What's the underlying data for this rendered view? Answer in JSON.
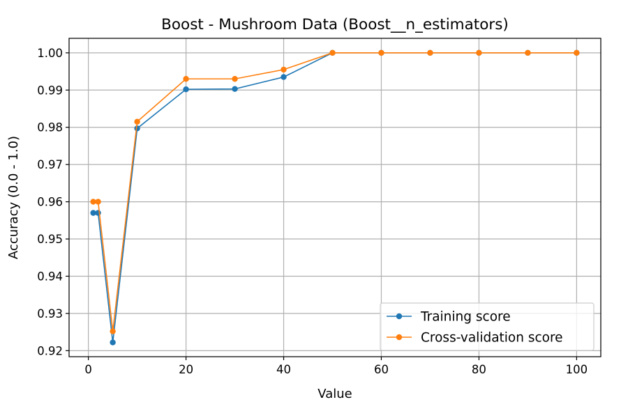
{
  "chart_data": {
    "type": "line",
    "title": "Boost - Mushroom Data (Boost__n_estimators)",
    "xlabel": "Value",
    "ylabel": "Accuracy (0.0 - 1.0)",
    "xlim": [
      -3.95,
      104.95
    ],
    "ylim": [
      0.91838,
      1.0039
    ],
    "xticks": [
      0,
      20,
      40,
      60,
      80,
      100
    ],
    "yticks": [
      0.92,
      0.93,
      0.94,
      0.95,
      0.96,
      0.97,
      0.98,
      0.99,
      1.0
    ],
    "xtick_labels": [
      "0",
      "20",
      "40",
      "60",
      "80",
      "100"
    ],
    "ytick_labels": [
      "0.92",
      "0.93",
      "0.94",
      "0.95",
      "0.96",
      "0.97",
      "0.98",
      "0.99",
      "1.00"
    ],
    "grid": true,
    "legend_position": "lower-right",
    "x": [
      1,
      2,
      5,
      10,
      20,
      30,
      40,
      50,
      60,
      70,
      80,
      90,
      100
    ],
    "series": [
      {
        "name": "Training score",
        "color": "#1f77b4",
        "values": [
          0.957,
          0.957,
          0.9222,
          0.9797,
          0.9902,
          0.9903,
          0.9935,
          1.0,
          1.0,
          1.0,
          1.0,
          1.0,
          1.0
        ]
      },
      {
        "name": "Cross-validation score",
        "color": "#ff7f0e",
        "values": [
          0.96,
          0.96,
          0.9252,
          0.9815,
          0.993,
          0.993,
          0.9955,
          1.0,
          1.0,
          1.0,
          1.0,
          1.0,
          1.0
        ]
      }
    ]
  }
}
